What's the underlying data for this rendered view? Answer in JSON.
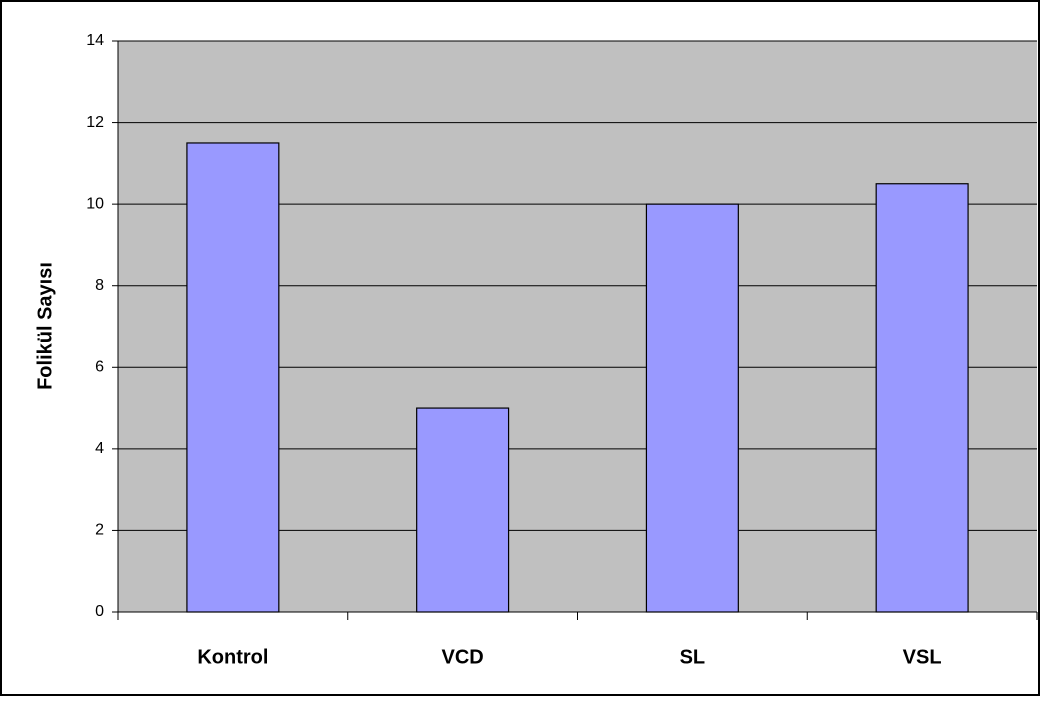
{
  "chart_data": {
    "type": "bar",
    "ylabel": "Folikül Sayısı",
    "categories": [
      "Kontrol",
      "VCD",
      "SL",
      "VSL"
    ],
    "values": [
      11.5,
      5,
      10,
      10.5
    ],
    "color": "#9999ff",
    "plot_background": "#c0c0c0",
    "ylim": [
      0,
      14
    ],
    "yticks": [
      0,
      2,
      4,
      6,
      8,
      10,
      12,
      14
    ],
    "grid": true
  }
}
